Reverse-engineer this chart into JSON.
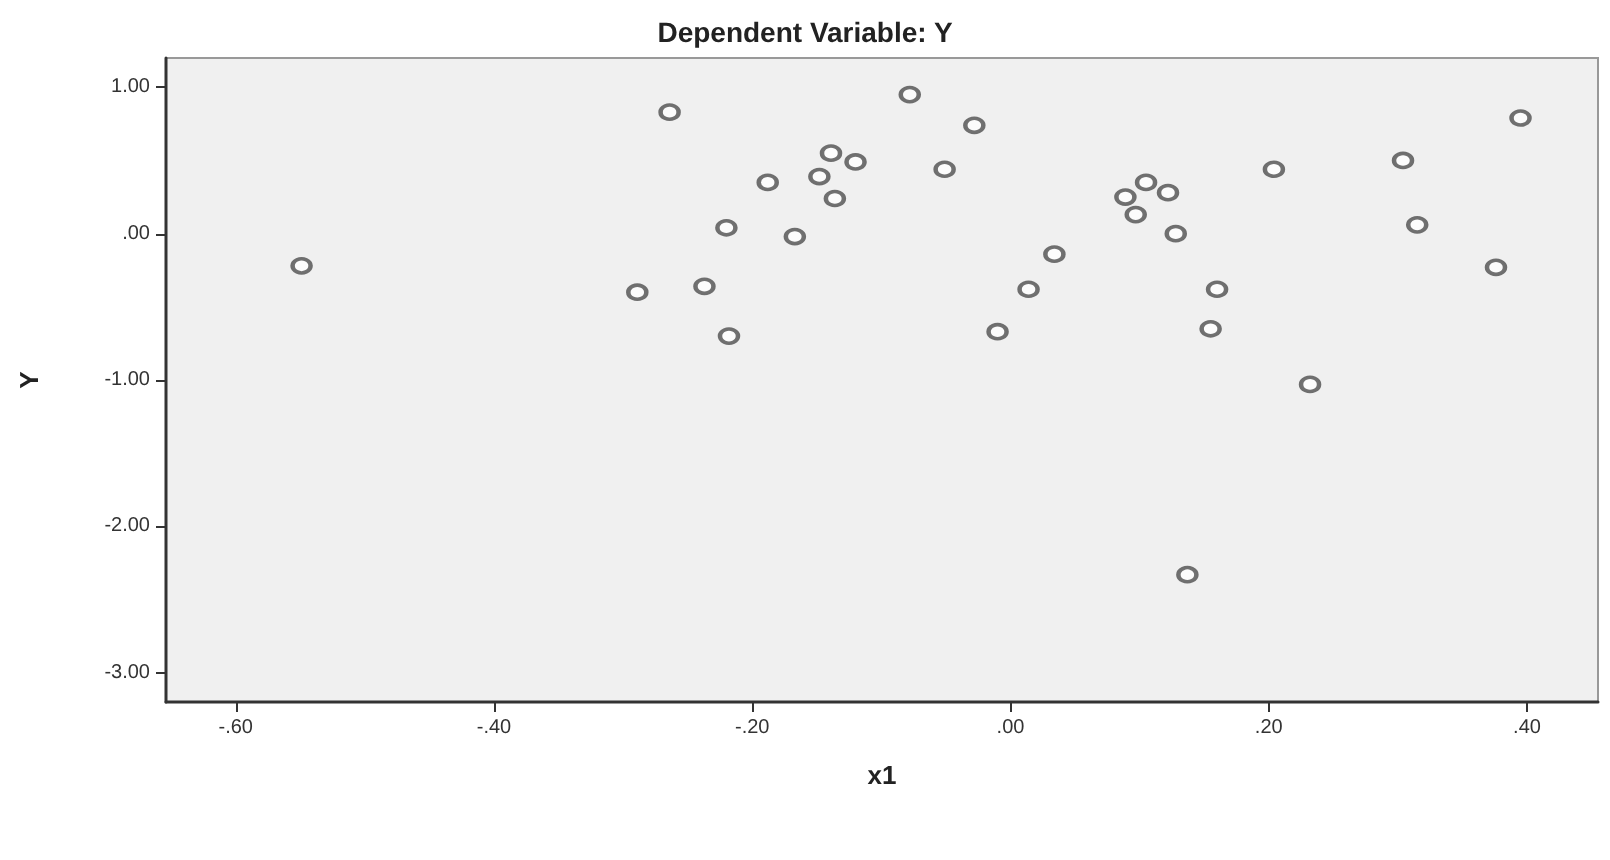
{
  "chart_data": {
    "type": "scatter",
    "title": "Dependent Variable: Y",
    "xlabel": "x1",
    "ylabel": "Y",
    "x": [
      -0.549,
      -0.289,
      -0.264,
      -0.237,
      -0.22,
      -0.218,
      -0.188,
      -0.167,
      -0.148,
      -0.139,
      -0.136,
      -0.12,
      -0.078,
      -0.051,
      -0.028,
      -0.01,
      0.014,
      0.034,
      0.089,
      0.097,
      0.105,
      0.122,
      0.128,
      0.137,
      0.155,
      0.16,
      0.204,
      0.232,
      0.304,
      0.315,
      0.376,
      0.395
    ],
    "values": [
      -0.22,
      -0.4,
      0.83,
      -0.36,
      0.04,
      -0.7,
      0.35,
      -0.02,
      0.39,
      0.55,
      0.24,
      0.49,
      0.95,
      0.44,
      0.74,
      -0.67,
      -0.38,
      -0.14,
      0.25,
      0.13,
      0.35,
      0.28,
      0.0,
      -2.33,
      -0.65,
      -0.38,
      0.44,
      -1.03,
      0.5,
      0.06,
      -0.23,
      0.79
    ],
    "color": "#4d4d4d",
    "marker": "circle",
    "xlim": [
      -0.654,
      0.455
    ],
    "ylim": [
      -3.2,
      1.2
    ],
    "xticks": [
      {
        "value": -0.6,
        "label": "-.60"
      },
      {
        "value": -0.4,
        "label": "-.40"
      },
      {
        "value": -0.2,
        "label": "-.20"
      },
      {
        "value": 0,
        "label": ".00"
      },
      {
        "value": 0.2,
        "label": ".20"
      },
      {
        "value": 0.4,
        "label": ".40"
      }
    ],
    "yticks": [
      {
        "value": -3,
        "label": "-3.00"
      },
      {
        "value": -2,
        "label": "-2.00"
      },
      {
        "value": -1,
        "label": "-1.00"
      },
      {
        "value": 0,
        "label": ".00"
      },
      {
        "value": 1,
        "label": "1.00"
      }
    ]
  }
}
